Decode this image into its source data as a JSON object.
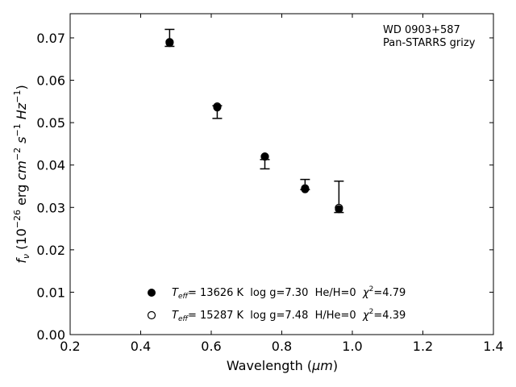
{
  "chart_data": {
    "type": "scatter",
    "annotation": {
      "line1": "WD 0903+587",
      "line2": "Pan-STARRS grizy"
    },
    "xlabel_main": "Wavelength (",
    "xlabel_unit": "μm",
    "xlabel_end": ")",
    "ylabel": {
      "f": "f",
      "sub": "ν",
      "open": " (10",
      "exp1": "−26",
      "mid1": " erg ",
      "cm": "cm",
      "exp2": "−2",
      "s": " s",
      "exp3": "−1",
      "hz": " Hz",
      "exp4": "−1",
      "close": ")"
    },
    "xlim": [
      0.2,
      1.4
    ],
    "ylim": [
      0.0,
      0.0757
    ],
    "xticks": [
      "0.2",
      "0.4",
      "0.6",
      "0.8",
      "1.0",
      "1.2",
      "1.4"
    ],
    "yticks": [
      "0.00",
      "0.01",
      "0.02",
      "0.03",
      "0.04",
      "0.05",
      "0.06",
      "0.07"
    ],
    "observed": {
      "x": [
        0.482,
        0.617,
        0.752,
        0.866,
        0.962
      ],
      "y": [
        0.07,
        0.0525,
        0.0413,
        0.0352,
        0.0325
      ],
      "yerr_low": [
        0.002,
        0.0015,
        0.0022,
        0.001,
        0.0037
      ],
      "yerr_high": [
        0.002,
        0.0015,
        0.0,
        0.0014,
        0.0037
      ]
    },
    "series": [
      {
        "marker": "filled",
        "x": [
          0.482,
          0.617,
          0.752,
          0.866,
          0.962
        ],
        "y": [
          0.0688,
          0.0536,
          0.042,
          0.0343,
          0.0296
        ]
      },
      {
        "marker": "open",
        "x": [
          0.482,
          0.617,
          0.752,
          0.866,
          0.962
        ],
        "y": [
          0.069,
          0.0538,
          0.042,
          0.0345,
          0.0299
        ]
      }
    ],
    "legend": [
      {
        "marker": "filled",
        "teff_T": "T",
        "teff_sub": "eff",
        "text1": "= 13626 K  log g=7.30  He/H=0  ",
        "chi": "χ",
        "chi_exp": "2",
        "text2": "=4.79"
      },
      {
        "marker": "open",
        "teff_T": "T",
        "teff_sub": "eff",
        "text1": "= 15287 K  log g=7.48  H/He=0  ",
        "chi": "χ",
        "chi_exp": "2",
        "text2": "=4.39"
      }
    ],
    "legend_position": "lower-center",
    "grid": false
  }
}
